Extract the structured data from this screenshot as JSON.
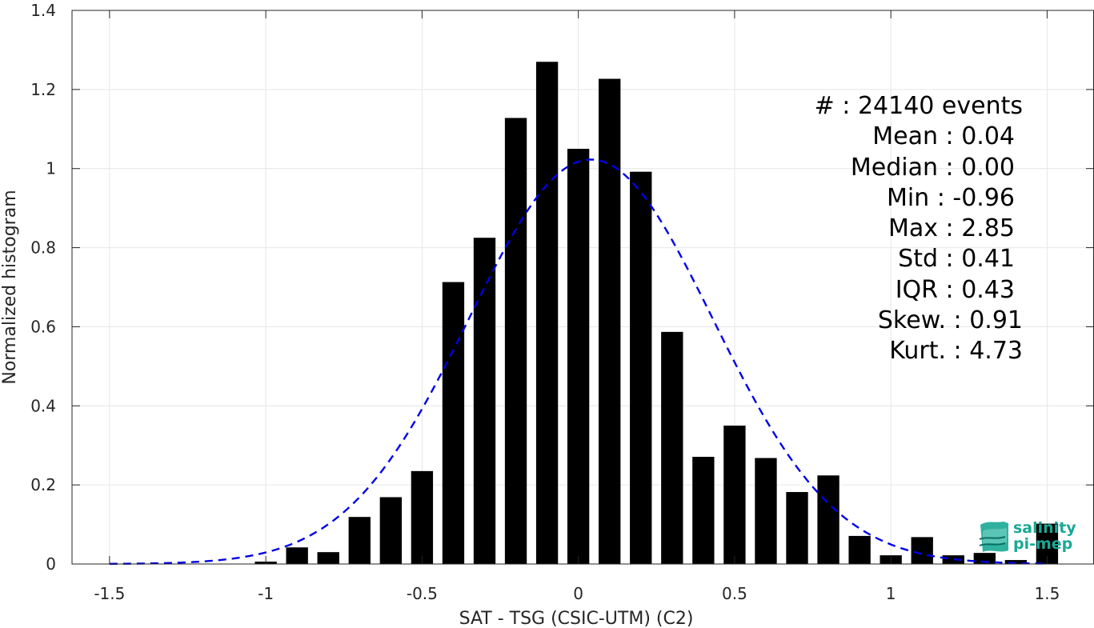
{
  "chart_data": {
    "type": "bar",
    "xlabel": "SAT - TSG (CSIC-UTM) (C2)",
    "ylabel": "Normalized histogram",
    "xlim": [
      -1.62,
      1.65
    ],
    "ylim": [
      0,
      1.4
    ],
    "xticks": [
      -1.5,
      -1,
      -0.5,
      0,
      0.5,
      1,
      1.5
    ],
    "xtick_labels": [
      "-1.5",
      "-1",
      "-0.5",
      "0",
      "0.5",
      "1",
      "1.5"
    ],
    "yticks": [
      0,
      0.2,
      0.4,
      0.6,
      0.8,
      1,
      1.2,
      1.4
    ],
    "ytick_labels": [
      "0",
      "0.2",
      "0.4",
      "0.6",
      "0.8",
      "1",
      "1.2",
      "1.4"
    ],
    "grid": true,
    "bar_color": "#000000",
    "bar_width": 0.07,
    "bins": [
      -1.0,
      -0.9,
      -0.8,
      -0.7,
      -0.6,
      -0.5,
      -0.4,
      -0.3,
      -0.2,
      -0.1,
      0.0,
      0.1,
      0.2,
      0.3,
      0.4,
      0.5,
      0.6,
      0.7,
      0.8,
      0.9,
      1.0,
      1.1,
      1.2,
      1.3,
      1.4,
      1.5
    ],
    "values": [
      0.006,
      0.042,
      0.03,
      0.119,
      0.169,
      0.235,
      0.713,
      0.825,
      1.128,
      1.27,
      1.05,
      1.227,
      0.992,
      0.587,
      0.271,
      0.35,
      0.268,
      0.182,
      0.224,
      0.071,
      0.022,
      0.068,
      0.022,
      0.028,
      0.01,
      0.102
    ],
    "fit_curve": {
      "type": "normal",
      "mean": 0.04,
      "std": 0.39,
      "x_range": [
        -1.5,
        1.5
      ],
      "color": "#0000e6",
      "style": "dashed"
    }
  },
  "stats": [
    "#  : 24140 events",
    "Mean : 0.04",
    "Median : 0.00",
    "Min : -0.96",
    "Max : 2.85",
    "Std : 0.41",
    "IQR : 0.43",
    "Skew. : 0.91",
    "Kurt. : 4.73"
  ],
  "logo": {
    "line1": "salinity",
    "line2": "pi-mep",
    "color": "#1aa896"
  }
}
